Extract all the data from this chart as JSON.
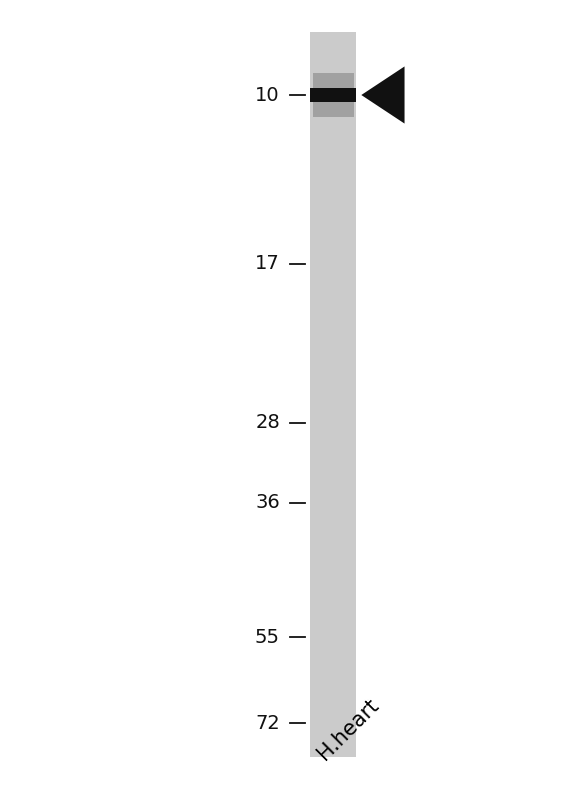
{
  "background_color": "#ffffff",
  "gel_color": "#cbcbcb",
  "lane_label": "H.heart",
  "lane_label_rotation": 45,
  "lane_label_fontsize": 15,
  "mw_markers": [
    72,
    55,
    36,
    28,
    17,
    10
  ],
  "band_mw": 10,
  "band_color": "#111111",
  "arrow_color": "#111111",
  "tick_color": "#111111",
  "label_color": "#111111",
  "figsize": [
    5.65,
    8.0
  ],
  "dpi": 100
}
